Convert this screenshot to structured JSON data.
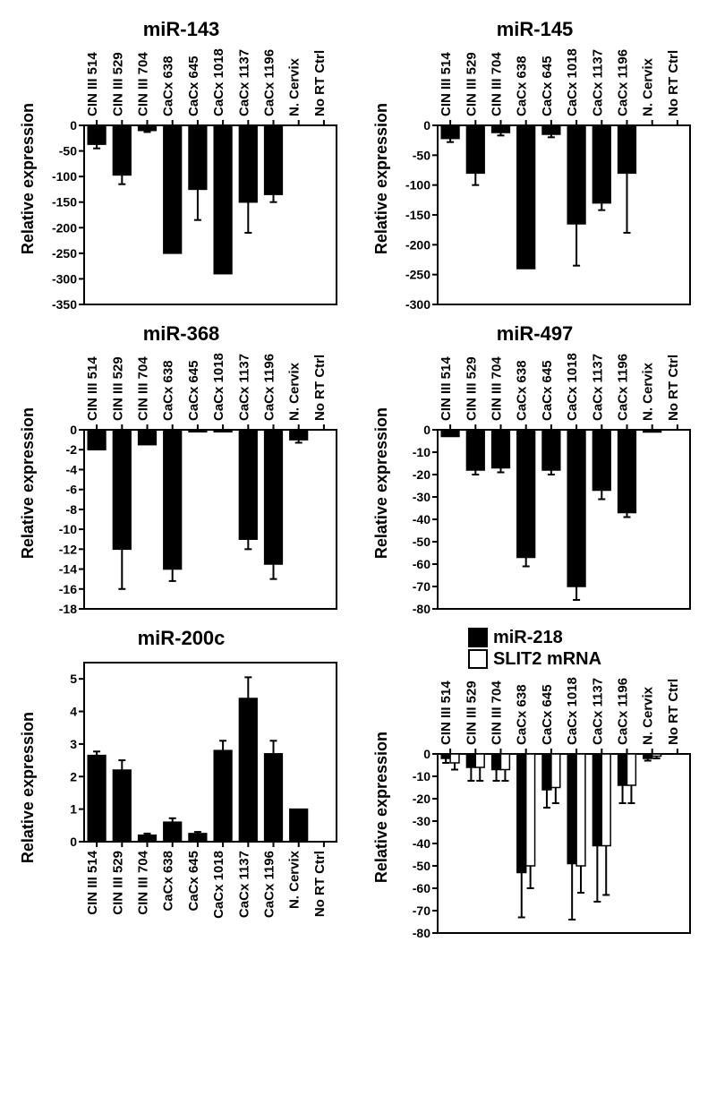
{
  "labels": {
    "yAxis": "Relative expression",
    "categories": [
      "CIN III 514",
      "CIN III 529",
      "CIN III 704",
      "CaCx 638",
      "CaCx 645",
      "CaCx 1018",
      "CaCx 1137",
      "CaCx 1196",
      "N. Cervix",
      "No RT Ctrl"
    ]
  },
  "style": {
    "barFill": "#000000",
    "barFillOpen": "#ffffff",
    "barStroke": "#000000",
    "axisColor": "#000000",
    "bg": "#ffffff",
    "titleFont": 22,
    "tickFont": 14,
    "catFont": 15,
    "barWidthFrac": 0.7,
    "axisStrokeWidth": 2,
    "errStrokeWidth": 2,
    "capHalf": 4
  },
  "charts": [
    {
      "id": "mir143",
      "title": "miR-143",
      "xLabelPos": "top",
      "yMax": 0,
      "yMin": -350,
      "yStep": 50,
      "series": [
        {
          "name": "miR-143",
          "color": "#000000",
          "values": [
            -37,
            -97,
            -10,
            -250,
            -125,
            -290,
            -150,
            -135,
            0,
            0
          ],
          "errors": [
            8,
            18,
            3,
            0,
            60,
            0,
            60,
            15,
            0,
            0
          ]
        }
      ]
    },
    {
      "id": "mir145",
      "title": "miR-145",
      "xLabelPos": "top",
      "yMax": 0,
      "yMin": -300,
      "yStep": 50,
      "series": [
        {
          "name": "miR-145",
          "color": "#000000",
          "values": [
            -22,
            -80,
            -12,
            -240,
            -15,
            -165,
            -130,
            -80,
            0,
            0
          ],
          "errors": [
            6,
            20,
            5,
            0,
            5,
            70,
            12,
            100,
            0,
            0
          ]
        }
      ]
    },
    {
      "id": "mir368",
      "title": "miR-368",
      "xLabelPos": "top",
      "yMax": 0,
      "yMin": -18,
      "yStep": 2,
      "series": [
        {
          "name": "miR-368",
          "color": "#000000",
          "values": [
            -2,
            -12,
            -1.5,
            -14,
            -0.2,
            -0.2,
            -11,
            -13.5,
            -1,
            0
          ],
          "errors": [
            0,
            4,
            0,
            1.2,
            0,
            0,
            1,
            1.5,
            0.3,
            0
          ]
        }
      ]
    },
    {
      "id": "mir497",
      "title": "miR-497",
      "xLabelPos": "top",
      "yMax": 0,
      "yMin": -80,
      "yStep": 10,
      "series": [
        {
          "name": "miR-497",
          "color": "#000000",
          "values": [
            -3,
            -18,
            -17,
            -57,
            -18,
            -70,
            -27,
            -37,
            -1,
            0
          ],
          "errors": [
            0,
            2,
            2,
            4,
            2,
            6,
            4,
            2,
            0,
            0
          ]
        }
      ]
    },
    {
      "id": "mir200c",
      "title": "miR-200c",
      "xLabelPos": "bottom",
      "yMax": 5.5,
      "yMin": 0,
      "yStep": 1,
      "yTicks": [
        0,
        1,
        2,
        3,
        4,
        5
      ],
      "series": [
        {
          "name": "miR-200c",
          "color": "#000000",
          "values": [
            2.65,
            2.2,
            0.2,
            0.6,
            0.25,
            2.8,
            4.4,
            2.7,
            1.0,
            0
          ],
          "errors": [
            0.12,
            0.3,
            0.05,
            0.12,
            0.05,
            0.3,
            0.65,
            0.4,
            0,
            0
          ]
        }
      ]
    },
    {
      "id": "mir218",
      "title": "",
      "legend": [
        {
          "label": "miR-218",
          "fill": "#000000"
        },
        {
          "label": "SLIT2 mRNA",
          "fill": "#ffffff"
        }
      ],
      "xLabelPos": "top",
      "yMax": 0,
      "yMin": -80,
      "yStep": 10,
      "series": [
        {
          "name": "miR-218",
          "color": "#000000",
          "values": [
            -2,
            -6,
            -7,
            -53,
            -16,
            -49,
            -41,
            -14,
            -2,
            0
          ],
          "errors": [
            2,
            6,
            5,
            20,
            8,
            25,
            25,
            8,
            1,
            0
          ]
        },
        {
          "name": "SLIT2 mRNA",
          "color": "#ffffff",
          "values": [
            -4,
            -6,
            -7,
            -50,
            -15,
            -50,
            -41,
            -14,
            -1,
            0
          ],
          "errors": [
            3,
            6,
            5,
            10,
            7,
            12,
            22,
            8,
            1,
            0
          ]
        }
      ]
    }
  ]
}
